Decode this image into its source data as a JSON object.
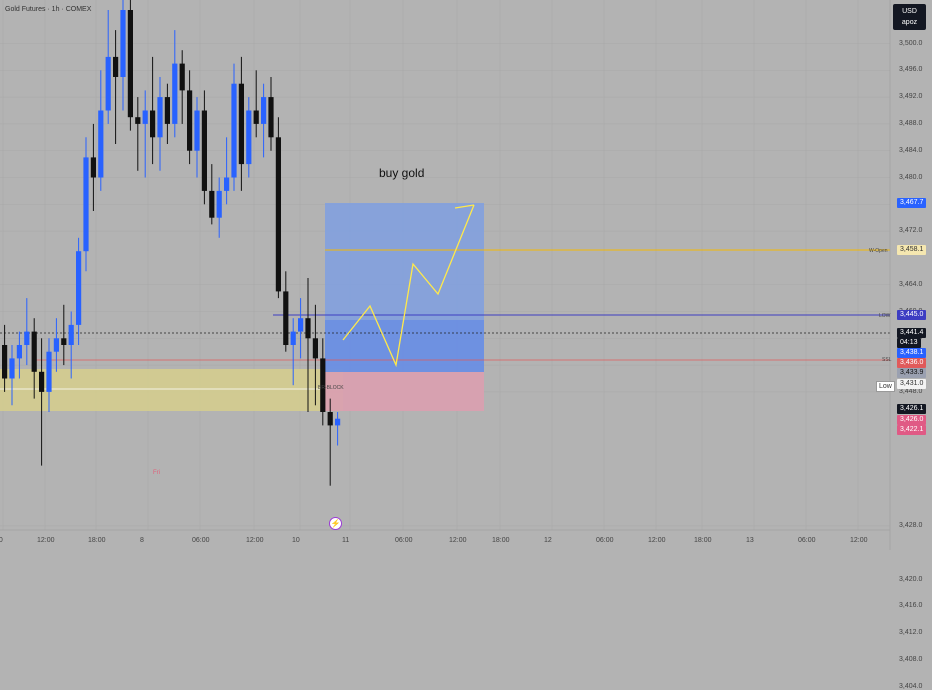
{
  "header": {
    "title": "Gold Futures · 1h · COMEX"
  },
  "currency": {
    "code": "USD",
    "sub": "apoz"
  },
  "annotation": {
    "text": "buy gold",
    "block_label": "BR-BLOCK",
    "fri": "Fri"
  },
  "colors": {
    "up": "#2962ff",
    "down": "#111111",
    "target_zone": "#7f9fe0",
    "stop_zone": "#d9a0b0",
    "demand_zone": "#d6ce8c",
    "path": "#ffe94a",
    "w_open": "#f5b800",
    "low_line": "#3d3dc2",
    "ssl_line": "#e05a5a"
  },
  "price_axis": {
    "ticks": [
      "3,500.0",
      "3,496.0",
      "3,492.0",
      "3,488.0",
      "3,484.0",
      "3,480.0",
      "3,476.0",
      "3,472.0",
      "3,464.0",
      "3,460.0",
      "3,456.0",
      "3,452.0",
      "3,448.0",
      "3,428.0",
      "3,420.0",
      "3,416.0",
      "3,412.0",
      "3,408.0",
      "3,404.0"
    ]
  },
  "time_axis": {
    "ticks": [
      "00",
      "12:00",
      "18:00",
      "8",
      "06:00",
      "12:00",
      "10",
      "11",
      "06:00",
      "12:00",
      "18:00",
      "12",
      "06:00",
      "12:00",
      "18:00",
      "13",
      "06:00",
      "12:00"
    ]
  },
  "levels": {
    "w_open": {
      "label": "W-Open",
      "price": "3,458.1",
      "value": 3458.1
    },
    "low_line": {
      "label": "LOW",
      "price": "3,445.0",
      "value": 3445.0
    },
    "ssl": {
      "label": "SSL",
      "price": "3,436.0",
      "value": 3436.0
    },
    "low_tag": {
      "label": "Low",
      "price": "3,431.0",
      "value": 3431.0
    }
  },
  "price_tags": {
    "target": "3,467.7",
    "current": "3,441.4",
    "countdown": "04:13",
    "entry": "3,438.1",
    "entry2": "3,433.9",
    "zone_top": "3,426.1",
    "zone_a": "3,426.0",
    "zone_b": "3,422.1"
  },
  "chart_data": {
    "type": "candlestick",
    "candles": [
      [
        3455,
        3458,
        3448,
        3450
      ],
      [
        3450,
        3455,
        3446,
        3453
      ],
      [
        3453,
        3457,
        3450,
        3455
      ],
      [
        3455,
        3462,
        3452,
        3457
      ],
      [
        3457,
        3459,
        3447,
        3451
      ],
      [
        3451,
        3456,
        3437,
        3448
      ],
      [
        3448,
        3456,
        3445,
        3454
      ],
      [
        3454,
        3459,
        3451,
        3456
      ],
      [
        3456,
        3461,
        3452,
        3455
      ],
      [
        3455,
        3460,
        3450,
        3458
      ],
      [
        3458,
        3471,
        3455,
        3469
      ],
      [
        3469,
        3486,
        3466,
        3483
      ],
      [
        3483,
        3488,
        3475,
        3480
      ],
      [
        3480,
        3496,
        3478,
        3490
      ],
      [
        3490,
        3505,
        3488,
        3498
      ],
      [
        3498,
        3502,
        3485,
        3495
      ],
      [
        3495,
        3507,
        3490,
        3505
      ],
      [
        3505,
        3510,
        3487,
        3489
      ],
      [
        3489,
        3492,
        3481,
        3488
      ],
      [
        3488,
        3493,
        3480,
        3490
      ],
      [
        3490,
        3498,
        3482,
        3486
      ],
      [
        3486,
        3495,
        3481,
        3492
      ],
      [
        3492,
        3494,
        3485,
        3488
      ],
      [
        3488,
        3502,
        3486,
        3497
      ],
      [
        3497,
        3499,
        3488,
        3493
      ],
      [
        3493,
        3496,
        3482,
        3484
      ],
      [
        3484,
        3492,
        3480,
        3490
      ],
      [
        3490,
        3493,
        3476,
        3478
      ],
      [
        3478,
        3482,
        3473,
        3474
      ],
      [
        3474,
        3480,
        3471,
        3478
      ],
      [
        3478,
        3486,
        3476,
        3480
      ],
      [
        3480,
        3497,
        3478,
        3494
      ],
      [
        3494,
        3498,
        3478,
        3482
      ],
      [
        3482,
        3492,
        3480,
        3490
      ],
      [
        3490,
        3496,
        3486,
        3488
      ],
      [
        3488,
        3494,
        3483,
        3492
      ],
      [
        3492,
        3495,
        3484,
        3486
      ],
      [
        3486,
        3489,
        3462,
        3463
      ],
      [
        3463,
        3466,
        3454,
        3455
      ],
      [
        3455,
        3459,
        3449,
        3457
      ],
      [
        3457,
        3462,
        3453,
        3459
      ],
      [
        3459,
        3465,
        3445,
        3456
      ],
      [
        3456,
        3461,
        3446,
        3453
      ],
      [
        3453,
        3456,
        3443,
        3445
      ],
      [
        3445,
        3447,
        3434,
        3443
      ],
      [
        3443,
        3445,
        3440,
        3444
      ]
    ],
    "path_points": [
      [
        3440,
        0
      ],
      [
        3446,
        1
      ],
      [
        3438,
        2
      ],
      [
        3455,
        3
      ],
      [
        3450,
        4
      ],
      [
        3468,
        5
      ]
    ],
    "title": "Gold Futures · 1h · COMEX"
  }
}
